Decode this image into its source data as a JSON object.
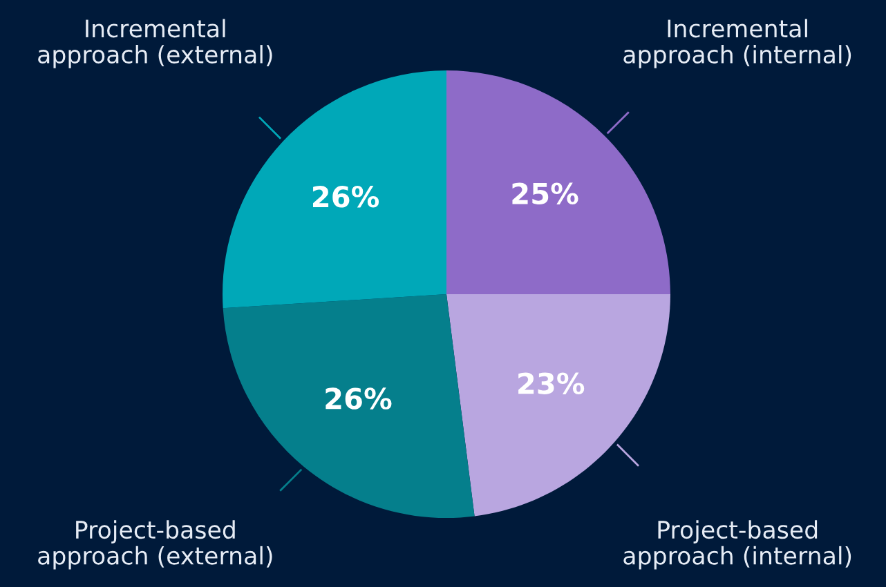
{
  "chart_data": {
    "type": "pie",
    "categories": [
      "Incremental\napproach (internal)",
      "Project-based\napproach (internal)",
      "Project-based\napproach (external)",
      "Incremental\napproach (external)"
    ],
    "values": [
      25,
      23,
      26,
      26
    ],
    "colors": [
      "#8e6bc8",
      "#b9a6e0",
      "#057f8c",
      "#00a8b8"
    ],
    "value_labels": [
      "25%",
      "23%",
      "26%",
      "26%"
    ],
    "legend": false
  }
}
